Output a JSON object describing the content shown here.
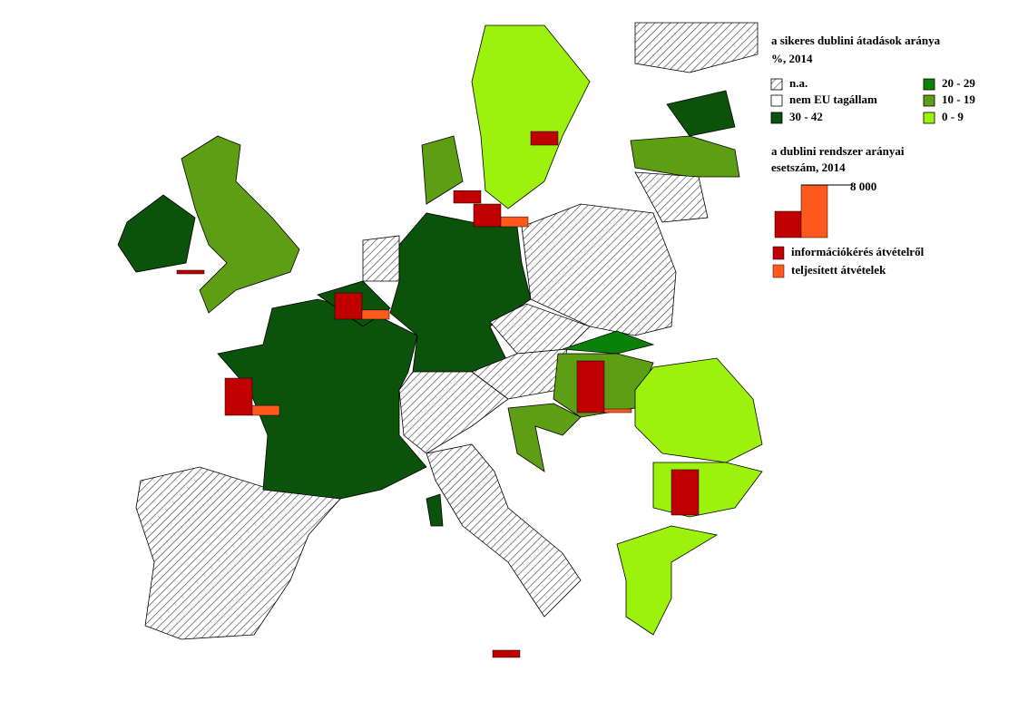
{
  "choropleth": {
    "title": [
      "a sikeres dublini átadások aránya",
      "%, 2014"
    ],
    "classes": [
      {
        "label": "n.a.",
        "color": "hatch"
      },
      {
        "label": "nem EU tagállam",
        "color": "#ffffff"
      },
      {
        "label": "30 - 42",
        "color": "#0b520b"
      },
      {
        "label": "20 - 29",
        "color": "#0a820a"
      },
      {
        "label": "10 - 19",
        "color": "#5e9e14"
      },
      {
        "label": "0 -   9",
        "color": "#9cf20c"
      }
    ]
  },
  "chart_data": {
    "type": "bar",
    "title": [
      "a dublini rendszer arányai",
      "esetszám, 2014"
    ],
    "series": [
      {
        "name": "információkérés átvételről",
        "color": "#c00000",
        "values": [
          5650,
          4000,
          3450,
          7860,
          6900,
          2070,
          1900,
          1100,
          550
        ]
      },
      {
        "name": "teljesített átvételek",
        "color": "#ff5a1e",
        "values": [
          1500,
          1400,
          1500,
          550,
          0,
          0,
          0,
          0,
          0
        ]
      }
    ],
    "size_legend": {
      "values": [
        4000,
        8000
      ],
      "label": {
        "value": 8000,
        "label": "8 000"
      }
    }
  }
}
